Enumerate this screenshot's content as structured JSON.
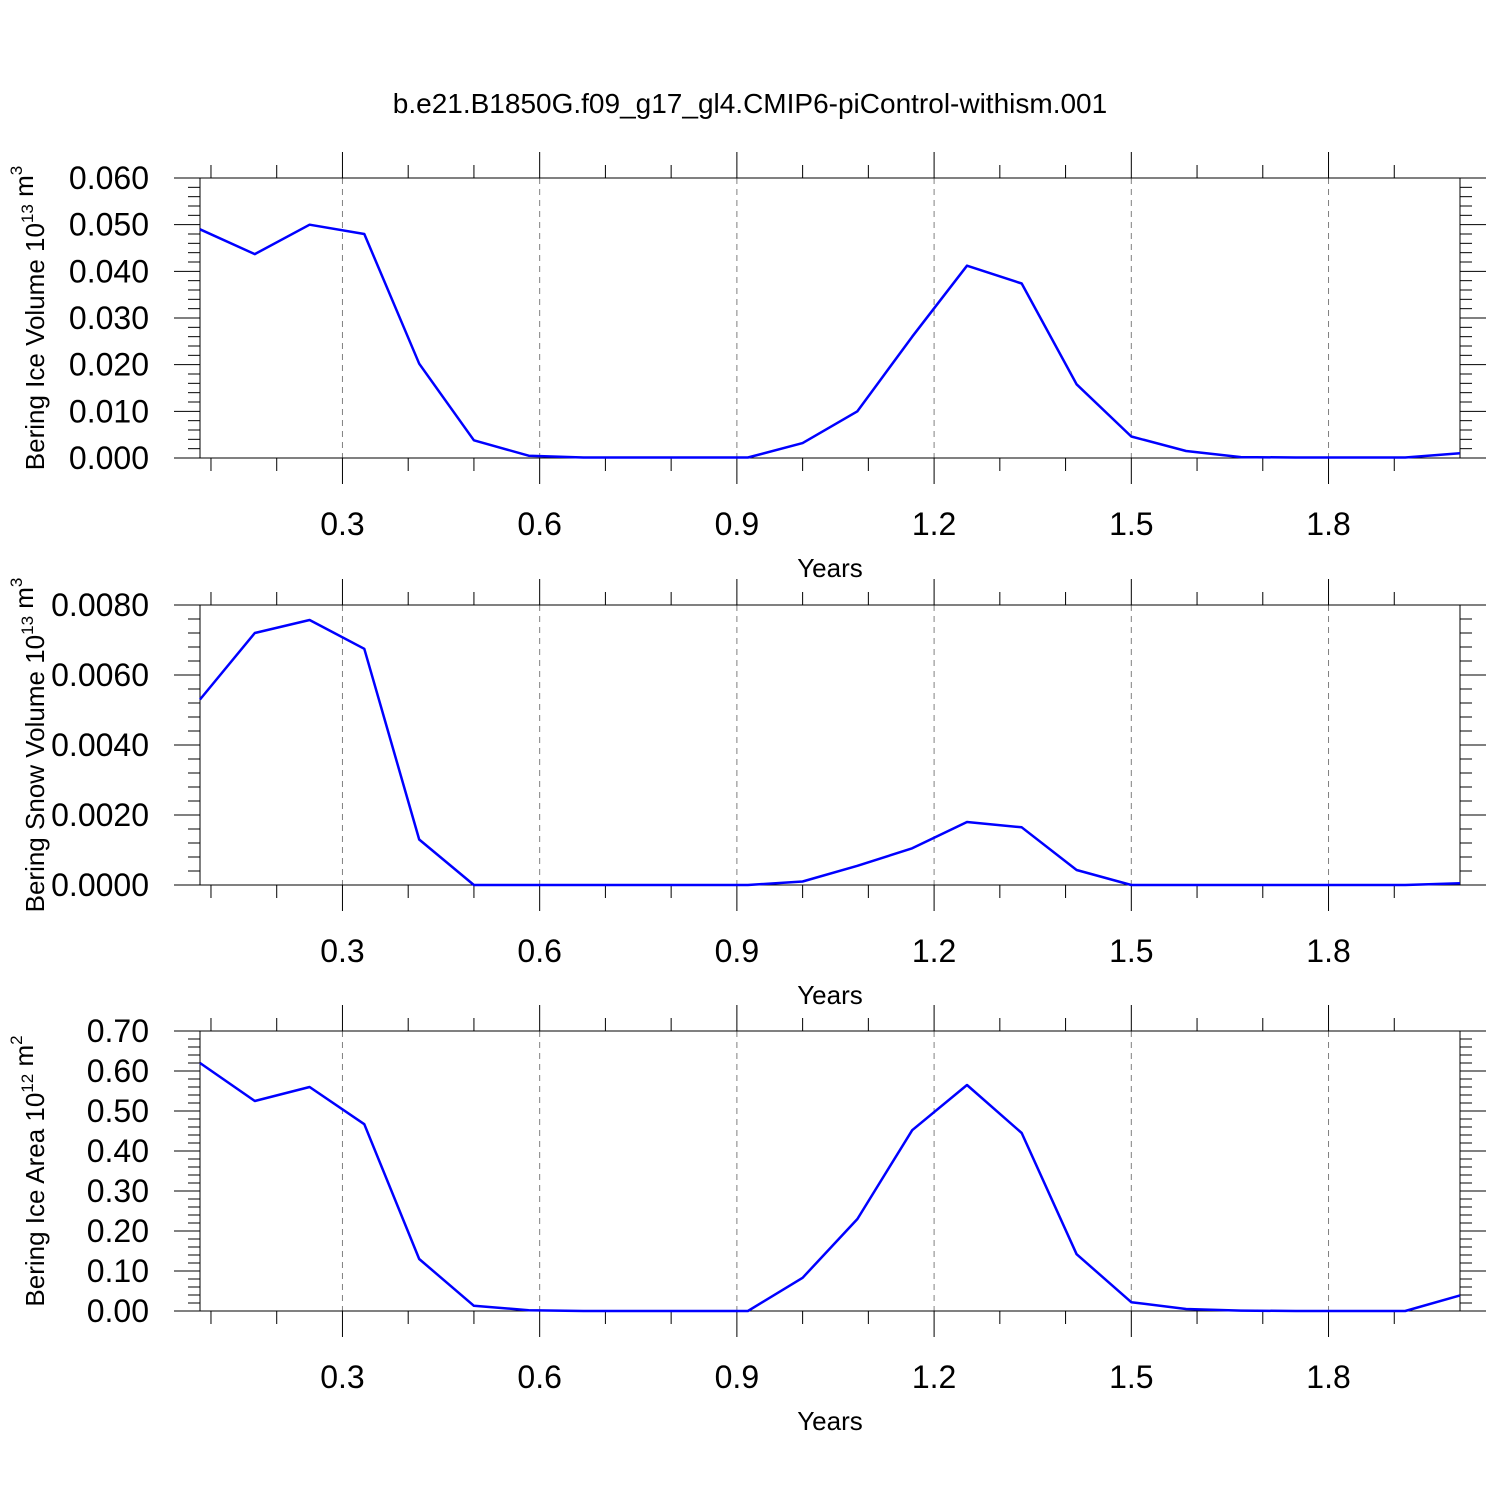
{
  "title": "b.e21.B1850G.f09_g17_gl4.CMIP6-piControl-withism.001",
  "colors": {
    "line": "#0000ff",
    "axis": "#000000",
    "grid": "#808080",
    "background": "#ffffff"
  },
  "chart_data": [
    {
      "type": "line",
      "ylabel": "Bering Ice Volume",
      "ylabel_units": {
        "scale": "10",
        "exp": "13",
        "unit": "m",
        "unit_exp": "3"
      },
      "xlabel": "Years",
      "xlim": [
        0.0833,
        2.0
      ],
      "ylim": [
        0,
        0.06
      ],
      "xticks": [
        0.3,
        0.6,
        0.9,
        1.2,
        1.5,
        1.8
      ],
      "xtick_labels": [
        "0.3",
        "0.6",
        "0.9",
        "1.2",
        "1.5",
        "1.8"
      ],
      "yticks": [
        0,
        0.01,
        0.02,
        0.03,
        0.04,
        0.05,
        0.06
      ],
      "ytick_labels": [
        "0.000",
        "0.010",
        "0.020",
        "0.030",
        "0.040",
        "0.050",
        "0.060"
      ],
      "grid": "vertical-dashed",
      "series": [
        {
          "x": [
            0.0833,
            0.1667,
            0.25,
            0.3333,
            0.4167,
            0.5,
            0.5833,
            0.6667,
            0.75,
            0.8333,
            0.9167,
            1.0,
            1.0833,
            1.1667,
            1.25,
            1.3333,
            1.4167,
            1.5,
            1.5833,
            1.6667,
            1.75,
            1.8333,
            1.9167,
            2.0
          ],
          "values": [
            0.049,
            0.0437,
            0.05,
            0.048,
            0.0202,
            0.0038,
            0.0005,
            0.0001,
            0.0001,
            0.0001,
            0.0001,
            0.0032,
            0.01,
            0.026,
            0.0412,
            0.0374,
            0.0158,
            0.0046,
            0.0015,
            0.0002,
            0.0001,
            0.0001,
            0.0001,
            0.001
          ]
        }
      ]
    },
    {
      "type": "line",
      "ylabel": "Bering Snow Volume",
      "ylabel_units": {
        "scale": "10",
        "exp": "13",
        "unit": "m",
        "unit_exp": "3"
      },
      "xlabel": "Years",
      "xlim": [
        0.0833,
        2.0
      ],
      "ylim": [
        0,
        0.008
      ],
      "xticks": [
        0.3,
        0.6,
        0.9,
        1.2,
        1.5,
        1.8
      ],
      "xtick_labels": [
        "0.3",
        "0.6",
        "0.9",
        "1.2",
        "1.5",
        "1.8"
      ],
      "yticks": [
        0,
        0.002,
        0.004,
        0.006,
        0.008
      ],
      "ytick_labels": [
        "0.0000",
        "0.0020",
        "0.0040",
        "0.0060",
        "0.0080"
      ],
      "grid": "vertical-dashed",
      "series": [
        {
          "x": [
            0.0833,
            0.1667,
            0.25,
            0.3333,
            0.4167,
            0.5,
            0.5833,
            0.6667,
            0.75,
            0.8333,
            0.9167,
            1.0,
            1.0833,
            1.1667,
            1.25,
            1.3333,
            1.4167,
            1.5,
            1.5833,
            1.6667,
            1.75,
            1.8333,
            1.9167,
            2.0
          ],
          "values": [
            0.0053,
            0.0072,
            0.00757,
            0.00675,
            0.0013,
            0.0,
            0.0,
            0.0,
            0.0,
            0.0,
            0.0,
            0.0001,
            0.00055,
            0.00105,
            0.0018,
            0.00165,
            0.00043,
            0.0,
            0.0,
            0.0,
            0.0,
            0.0,
            0.0,
            5e-05
          ]
        }
      ]
    },
    {
      "type": "line",
      "ylabel": "Bering Ice Area",
      "ylabel_units": {
        "scale": "10",
        "exp": "12",
        "unit": "m",
        "unit_exp": "2"
      },
      "xlabel": "Years",
      "xlim": [
        0.0833,
        2.0
      ],
      "ylim": [
        0,
        0.7
      ],
      "xticks": [
        0.3,
        0.6,
        0.9,
        1.2,
        1.5,
        1.8
      ],
      "xtick_labels": [
        "0.3",
        "0.6",
        "0.9",
        "1.2",
        "1.5",
        "1.8"
      ],
      "yticks": [
        0,
        0.1,
        0.2,
        0.3,
        0.4,
        0.5,
        0.6,
        0.7
      ],
      "ytick_labels": [
        "0.00",
        "0.10",
        "0.20",
        "0.30",
        "0.40",
        "0.50",
        "0.60",
        "0.70"
      ],
      "grid": "vertical-dashed",
      "series": [
        {
          "x": [
            0.0833,
            0.1667,
            0.25,
            0.3333,
            0.4167,
            0.5,
            0.5833,
            0.6667,
            0.75,
            0.8333,
            0.9167,
            1.0,
            1.0833,
            1.1667,
            1.25,
            1.3333,
            1.4167,
            1.5,
            1.5833,
            1.6667,
            1.75,
            1.8333,
            1.9167,
            2.0
          ],
          "values": [
            0.62,
            0.525,
            0.56,
            0.467,
            0.13,
            0.013,
            0.002,
            0.0,
            0.0,
            0.0,
            0.0,
            0.083,
            0.23,
            0.452,
            0.565,
            0.445,
            0.142,
            0.022,
            0.005,
            0.001,
            0.0,
            0.0,
            0.0,
            0.039
          ]
        }
      ]
    }
  ]
}
